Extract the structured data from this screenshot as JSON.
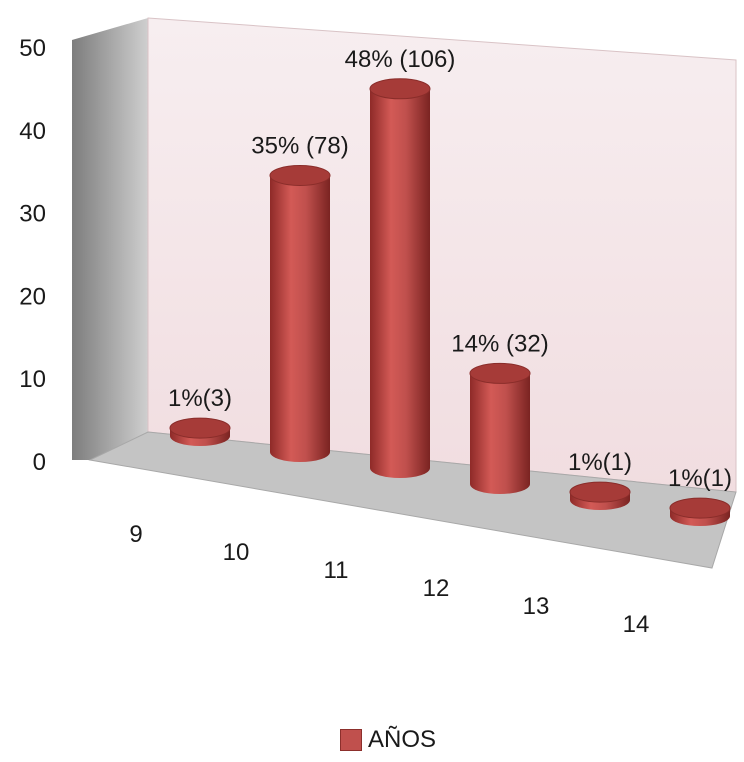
{
  "chart_data": {
    "type": "bar",
    "style": "3d-cylinder",
    "categories": [
      "9",
      "10",
      "11",
      "12",
      "13",
      "14"
    ],
    "series": [
      {
        "name": "AÑOS",
        "values": [
          1,
          35,
          48,
          14,
          1,
          1
        ],
        "data_labels": [
          "1%(3)",
          "35% (78)",
          "48% (106)",
          "14% (32)",
          "1%(1)",
          "1%(1)"
        ]
      }
    ],
    "y_ticks": [
      "0",
      "10",
      "20",
      "30",
      "40",
      "50"
    ],
    "ylim": [
      0,
      50
    ],
    "legend_position": "bottom",
    "colors": {
      "bar": "#c0504d",
      "back_wall": "#f5e6e8",
      "side_wall": "#9e9e9e",
      "floor": "#bdbdbd"
    }
  }
}
